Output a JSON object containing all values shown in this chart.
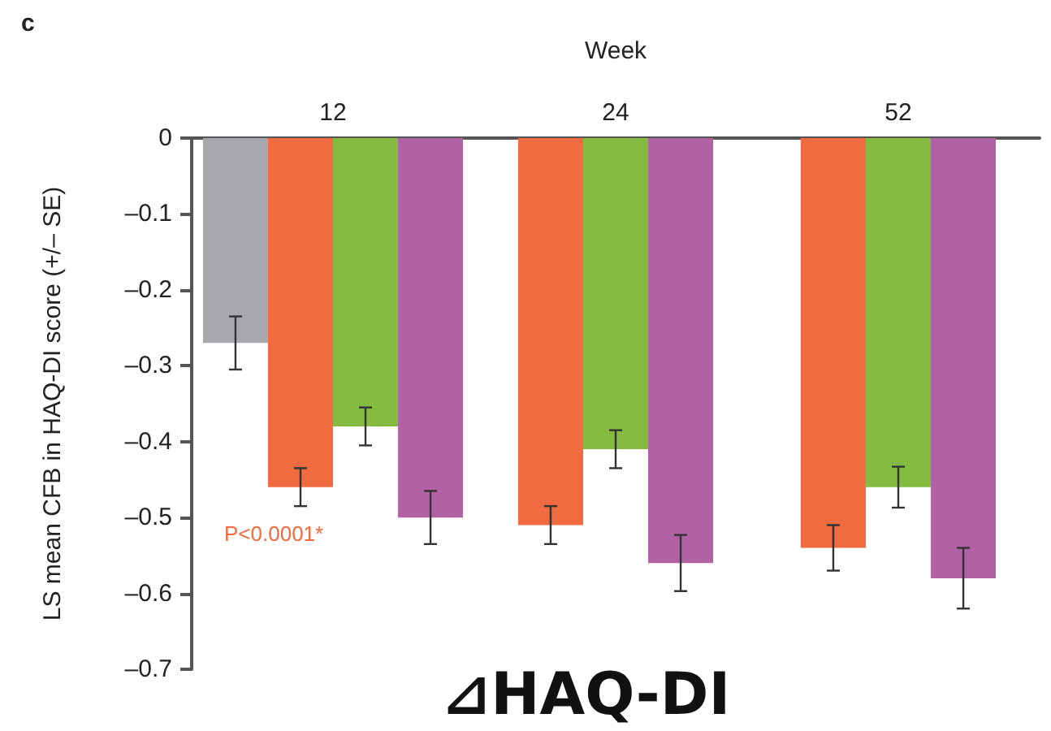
{
  "chart_data": {
    "type": "bar",
    "title": "c",
    "xlabel": "Week",
    "ylabel": "LS mean CFB in HAQ-DI score (+/– SE)",
    "categories": [
      "12",
      "24",
      "52"
    ],
    "series": [
      {
        "color": "#a7a8ac",
        "values": [
          -0.27,
          null,
          null
        ],
        "errors": [
          0.035,
          null,
          null
        ]
      },
      {
        "color": "#f06b3f",
        "values": [
          -0.46,
          -0.51,
          -0.54
        ],
        "errors": [
          0.025,
          0.025,
          0.03
        ]
      },
      {
        "color": "#84bb41",
        "values": [
          -0.38,
          -0.41,
          -0.46
        ],
        "errors": [
          0.025,
          0.025,
          0.027
        ]
      },
      {
        "color": "#b062a4",
        "values": [
          -0.5,
          -0.56,
          -0.58
        ],
        "errors": [
          0.035,
          0.037,
          0.04
        ]
      }
    ],
    "ylim": [
      -0.7,
      0
    ],
    "yticks": [
      0,
      {
        "value": -0.1,
        "label": "–0.1"
      },
      {
        "value": -0.2,
        "label": "–0.2"
      },
      {
        "value": -0.3,
        "label": "–0.3"
      },
      {
        "value": -0.4,
        "label": "–0.4"
      },
      {
        "value": -0.5,
        "label": "–0.5"
      },
      {
        "value": -0.6,
        "label": "–0.6"
      },
      {
        "value": -0.7,
        "label": "–0.7"
      }
    ],
    "annotations": [
      "P<0.0001*",
      "⊿HAQ-DI"
    ],
    "grid": false
  }
}
